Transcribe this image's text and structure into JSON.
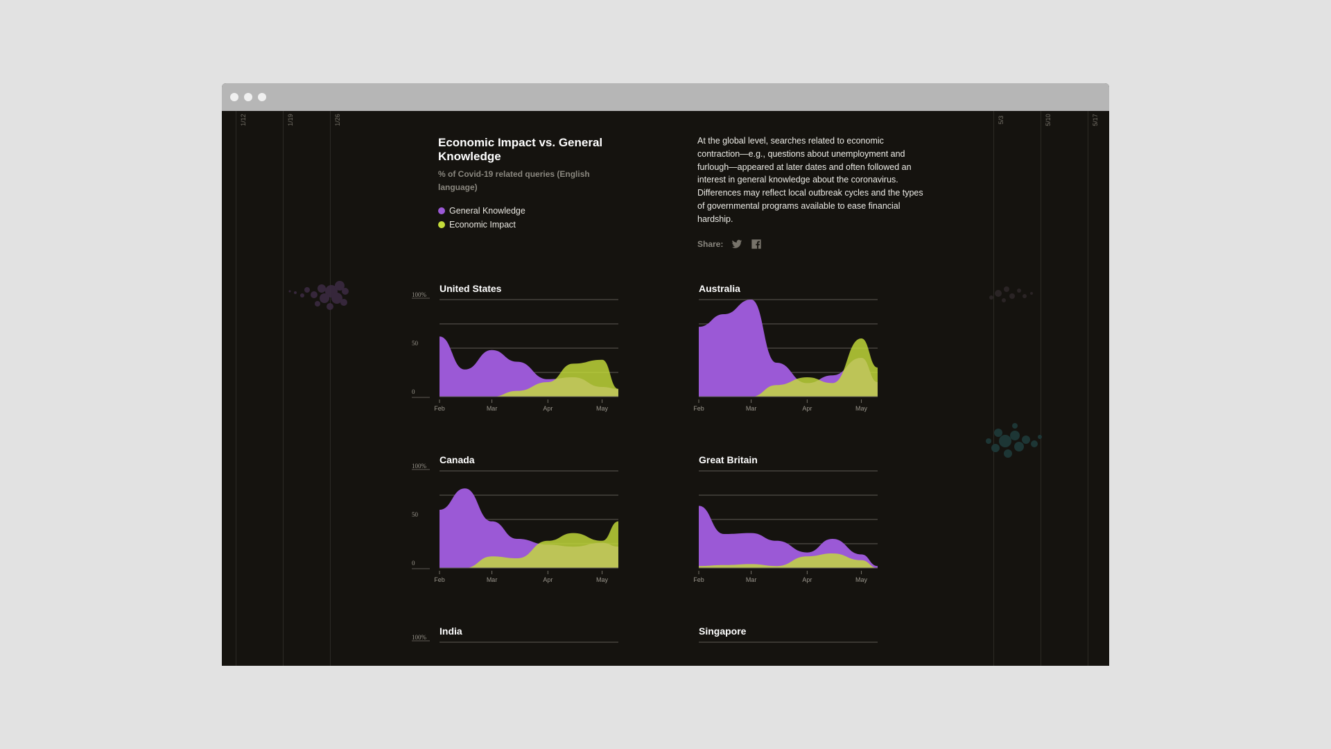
{
  "colors": {
    "general_knowledge": "#9b59d6",
    "economic_impact": "#c4dc3a",
    "overlap": "#bcc36a",
    "background": "#15130f",
    "gridline": "#5e5b55"
  },
  "date_marks": {
    "left": [
      "1/12",
      "1/19",
      "1/26"
    ],
    "right": [
      "5/3",
      "5/10",
      "5/17"
    ]
  },
  "header": {
    "title": "Economic Impact vs. General Knowledge",
    "subtitle": "% of Covid-19 related queries (English language)",
    "legend": [
      {
        "label": "General Knowledge",
        "color": "#9b59d6"
      },
      {
        "label": "Economic Impact",
        "color": "#c4dc3a"
      }
    ]
  },
  "description": "At the global level, searches related to economic contraction—e.g., questions about unemployment and furlough—appeared at later dates and often followed an interest in general knowledge about the coronavirus. Differences may reflect local outbreak cycles and the types of governmental programs available to ease financial hardship.",
  "share": {
    "label": "Share:",
    "icons": [
      "twitter-icon",
      "facebook-icon"
    ]
  },
  "chart_data": [
    {
      "type": "area",
      "title": "United States",
      "x_ticks": [
        "Feb",
        "Mar",
        "Apr",
        "May"
      ],
      "y_ticks": [
        "100%",
        "50",
        "0"
      ],
      "ylim": [
        0,
        100
      ],
      "x": [
        "Feb 1",
        "Feb 15",
        "Mar 1",
        "Mar 15",
        "Apr 1",
        "Apr 15",
        "May 1",
        "May 10"
      ],
      "series": [
        {
          "name": "General Knowledge",
          "values": [
            62,
            28,
            48,
            36,
            18,
            20,
            10,
            8
          ]
        },
        {
          "name": "Economic Impact",
          "values": [
            0,
            0,
            0,
            6,
            15,
            34,
            38,
            8
          ]
        }
      ]
    },
    {
      "type": "area",
      "title": "Australia",
      "x_ticks": [
        "Feb",
        "Mar",
        "Apr",
        "May"
      ],
      "y_ticks": [],
      "ylim": [
        0,
        100
      ],
      "x": [
        "Feb 1",
        "Feb 15",
        "Mar 1",
        "Mar 15",
        "Apr 1",
        "Apr 15",
        "May 1",
        "May 10"
      ],
      "series": [
        {
          "name": "General Knowledge",
          "values": [
            72,
            85,
            100,
            35,
            14,
            22,
            40,
            15
          ]
        },
        {
          "name": "Economic Impact",
          "values": [
            0,
            0,
            0,
            12,
            20,
            14,
            60,
            30
          ]
        }
      ]
    },
    {
      "type": "area",
      "title": "Canada",
      "x_ticks": [
        "Feb",
        "Mar",
        "Apr",
        "May"
      ],
      "y_ticks": [
        "100%",
        "50",
        "0"
      ],
      "ylim": [
        0,
        100
      ],
      "x": [
        "Feb 1",
        "Feb 15",
        "Mar 1",
        "Mar 15",
        "Apr 1",
        "Apr 15",
        "May 1",
        "May 10"
      ],
      "series": [
        {
          "name": "General Knowledge",
          "values": [
            60,
            82,
            48,
            30,
            24,
            22,
            26,
            22
          ]
        },
        {
          "name": "Economic Impact",
          "values": [
            0,
            0,
            12,
            10,
            28,
            36,
            28,
            48
          ]
        }
      ]
    },
    {
      "type": "area",
      "title": "Great Britain",
      "x_ticks": [
        "Feb",
        "Mar",
        "Apr",
        "May"
      ],
      "y_ticks": [],
      "ylim": [
        0,
        100
      ],
      "x": [
        "Feb 1",
        "Feb 15",
        "Mar 1",
        "Mar 15",
        "Apr 1",
        "Apr 15",
        "May 1",
        "May 10"
      ],
      "series": [
        {
          "name": "General Knowledge",
          "values": [
            64,
            35,
            36,
            28,
            16,
            30,
            14,
            2
          ]
        },
        {
          "name": "Economic Impact",
          "values": [
            2,
            3,
            4,
            2,
            12,
            15,
            8,
            0
          ]
        }
      ]
    },
    {
      "type": "area",
      "title": "India",
      "x_ticks": [],
      "y_ticks": [
        "100%"
      ],
      "ylim": [
        0,
        100
      ],
      "x": [],
      "series": []
    },
    {
      "type": "area",
      "title": "Singapore",
      "x_ticks": [],
      "y_ticks": [],
      "ylim": [
        0,
        100
      ],
      "x": [],
      "series": []
    }
  ]
}
